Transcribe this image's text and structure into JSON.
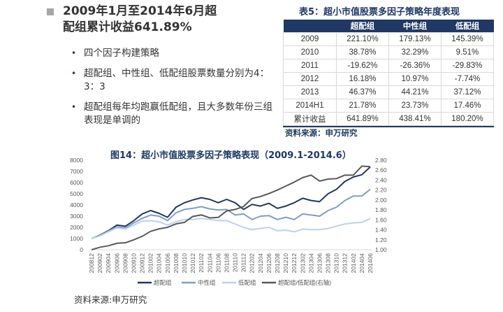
{
  "headline": "2009年1月至2014年6月超配组累计收益641.89%",
  "bullets": [
    "四个因子构建策略",
    "超配组、中性组、低配组股票数量分别为4：3：3",
    "超配组每年均跑赢低配组，且大多数年份三组表现是单调的"
  ],
  "table": {
    "title": "表5：超小市值股票多因子策略年度表现",
    "headers": [
      "",
      "超配组",
      "中性组",
      "低配组"
    ],
    "rows": [
      [
        "2009",
        "221.10%",
        "179.13%",
        "145.39%"
      ],
      [
        "2010",
        "38.78%",
        "32.29%",
        "9.51%"
      ],
      [
        "2011",
        "-19.62%",
        "-26.36%",
        "-29.83%"
      ],
      [
        "2012",
        "16.18%",
        "10.97%",
        "-7.74%"
      ],
      [
        "2013",
        "46.37%",
        "44.21%",
        "37.12%"
      ],
      [
        "2014H1",
        "21.78%",
        "23.73%",
        "17.46%"
      ],
      [
        "累计收益",
        "641.89%",
        "438.41%",
        "180.20%"
      ]
    ],
    "source": "资料来源：申万研究"
  },
  "chart_source": "资料来源:申万研究",
  "chart_data": {
    "type": "line",
    "title": "图14：超小市值股票多因子策略表现（2009.1-2014.6）",
    "categories": [
      "200812",
      "200902",
      "200904",
      "200906",
      "200908",
      "200910",
      "200912",
      "201002",
      "201004",
      "201006",
      "201008",
      "201010",
      "201012",
      "201102",
      "201104",
      "201106",
      "201108",
      "201110",
      "201112",
      "201202",
      "201204",
      "201206",
      "201208",
      "201210",
      "201212",
      "201302",
      "201304",
      "201306",
      "201308",
      "201310",
      "201312",
      "201402",
      "201404",
      "201406"
    ],
    "y_left": {
      "range": [
        0,
        8000
      ],
      "ticks": [
        "0",
        "1000",
        "2000",
        "3000",
        "4000",
        "5000",
        "6000",
        "7000",
        "8000"
      ]
    },
    "y_right": {
      "range": [
        1.0,
        2.8
      ],
      "ticks": [
        "1.00",
        "1.20",
        "1.40",
        "1.60",
        "1.80",
        "2.00",
        "2.20",
        "2.40",
        "2.60",
        "2.80"
      ]
    },
    "legend_position": "bottom",
    "grid": false,
    "series": [
      {
        "name": "超配组",
        "axis": "left",
        "color": "#1f3864",
        "values": [
          1000,
          1300,
          1700,
          2200,
          2100,
          2600,
          3200,
          3500,
          3250,
          2900,
          3800,
          4200,
          4450,
          4650,
          4500,
          4200,
          4500,
          4200,
          3600,
          4050,
          3900,
          4150,
          3700,
          3900,
          4200,
          4600,
          4400,
          4300,
          5000,
          5400,
          6100,
          6500,
          6700,
          7400
        ]
      },
      {
        "name": "中性组",
        "axis": "left",
        "color": "#7f9dc6",
        "values": [
          1000,
          1250,
          1650,
          2050,
          1950,
          2400,
          2800,
          3100,
          3000,
          2600,
          3300,
          3600,
          3700,
          3850,
          3650,
          3550,
          3600,
          3100,
          3200,
          2700,
          3000,
          3050,
          2700,
          2900,
          2700,
          3200,
          3100,
          3000,
          3500,
          3800,
          4400,
          4800,
          4800,
          5400
        ]
      },
      {
        "name": "低配组",
        "axis": "left",
        "color": "#bdd1ea",
        "values": [
          1000,
          1250,
          1600,
          1950,
          1850,
          2200,
          2550,
          2600,
          2500,
          2200,
          2500,
          2700,
          2700,
          2800,
          2700,
          2600,
          2600,
          2300,
          2000,
          1800,
          1900,
          2000,
          1700,
          1750,
          1600,
          1850,
          1800,
          1800,
          1900,
          2100,
          2300,
          2400,
          2450,
          2800
        ]
      },
      {
        "name": "超配组/低配组(右轴)",
        "axis": "right",
        "color": "#595959",
        "values": [
          1.0,
          1.05,
          1.08,
          1.13,
          1.14,
          1.2,
          1.27,
          1.37,
          1.42,
          1.45,
          1.52,
          1.55,
          1.67,
          1.7,
          1.64,
          1.65,
          1.78,
          1.81,
          1.87,
          2.03,
          2.07,
          2.13,
          2.2,
          2.28,
          2.36,
          2.45,
          2.5,
          2.38,
          2.42,
          2.43,
          2.5,
          2.5,
          2.68,
          2.67
        ]
      }
    ]
  }
}
